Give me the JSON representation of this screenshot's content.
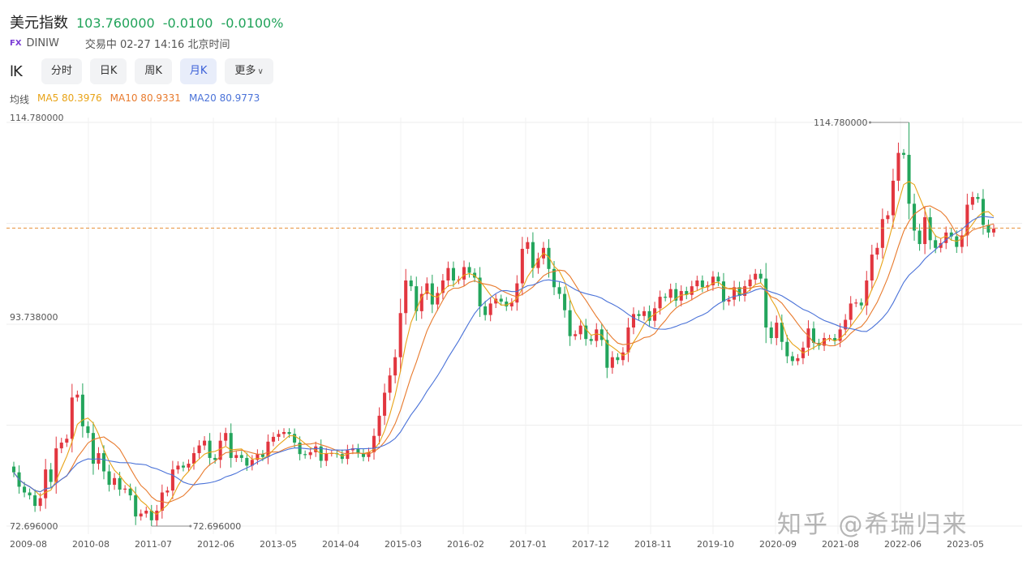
{
  "header": {
    "name": "美元指数",
    "price": "103.760000",
    "change": "-0.0100",
    "change_pct": "-0.0100%",
    "badge": "FX",
    "code": "DINIW",
    "status": "交易中 02-27 14:16 北京时间"
  },
  "toolbar": {
    "logo": "lK",
    "tabs": [
      "分时",
      "日K",
      "周K",
      "月K"
    ],
    "active_tab": "月K",
    "more_label": "更多"
  },
  "ma": {
    "label": "均线",
    "ma5": "MA5 80.3976",
    "ma10": "MA10 80.9331",
    "ma20": "MA20 80.9773"
  },
  "colors": {
    "up": "#e2363f",
    "down": "#23a55c",
    "ma5": "#e8a317",
    "ma10": "#e87a2d",
    "ma20": "#4a72d8",
    "last_price_line": "#e8913a"
  },
  "watermark": "知乎 @希瑞归来",
  "chart_data": {
    "type": "candlestick",
    "interval": "monthly",
    "ylim": [
      72.696,
      114.78
    ],
    "y_tick_labels": [
      "114.780000",
      "93.738000",
      "72.696000"
    ],
    "y_ticks": [
      114.78,
      93.738,
      72.696
    ],
    "x_tick_labels": [
      "2009-08",
      "2010-08",
      "2011-07",
      "2012-06",
      "2013-05",
      "2014-04",
      "2015-03",
      "2016-02",
      "2017-01",
      "2017-12",
      "2018-11",
      "2019-10",
      "2020-09",
      "2021-08",
      "2022-06",
      "2023-05"
    ],
    "max_label": "114.780000",
    "min_label": "72.696000",
    "last_price": 103.76,
    "grid": true,
    "series_keys": [
      "MA5",
      "MA10",
      "MA20"
    ],
    "closes": [
      78.3,
      76.8,
      76.2,
      75.9,
      74.8,
      75.6,
      78.6,
      77.3,
      80.8,
      81.4,
      81.8,
      86.1,
      86.4,
      83.1,
      82.4,
      79.2,
      80.3,
      78.4,
      77.0,
      77.7,
      76.5,
      76.6,
      75.9,
      73.7,
      74.0,
      74.3,
      73.3,
      74.3,
      76.2,
      76.4,
      78.6,
      79.0,
      78.8,
      79.2,
      80.3,
      81.1,
      81.6,
      79.8,
      79.6,
      81.6,
      82.4,
      79.8,
      80.1,
      79.8,
      79.0,
      79.6,
      80.2,
      79.9,
      81.5,
      82.0,
      82.3,
      82.5,
      82.3,
      81.4,
      80.2,
      80.1,
      80.4,
      81.0,
      79.5,
      80.3,
      80.3,
      80.2,
      79.7,
      80.6,
      80.8,
      80.3,
      79.9,
      80.4,
      82.1,
      84.2,
      86.6,
      88.4,
      90.3,
      94.9,
      98.3,
      97.7,
      95.1,
      96.9,
      98.0,
      95.8,
      97.0,
      98.3,
      99.6,
      98.3,
      98.4,
      99.7,
      99.1,
      98.6,
      95.6,
      94.7,
      95.9,
      96.4,
      96.1,
      95.6,
      96.0,
      98.0,
      101.6,
      102.3,
      99.6,
      100.6,
      101.7,
      99.5,
      97.6,
      96.9,
      95.2,
      92.5,
      92.7,
      93.6,
      92.2,
      92.0,
      93.2,
      92.1,
      89.2,
      90.3,
      90.0,
      90.8,
      93.4,
      94.8,
      94.6,
      95.1,
      94.1,
      95.4,
      96.6,
      96.5,
      97.4,
      96.2,
      97.2,
      96.8,
      97.7,
      98.3,
      97.6,
      97.8,
      98.7,
      98.2,
      96.1,
      96.3,
      97.6,
      96.7,
      97.7,
      98.4,
      99.0,
      98.5,
      93.4,
      92.3,
      93.9,
      91.9,
      90.4,
      89.9,
      90.2,
      91.3,
      93.3,
      91.8,
      91.5,
      92.3,
      92.3,
      92.0,
      93.2,
      94.2,
      95.9,
      96.0,
      95.7,
      98.3,
      101.0,
      101.7,
      104.7,
      105.1,
      108.7,
      111.6,
      111.4,
      106.3,
      103.5,
      102.1,
      104.9,
      102.5,
      101.7,
      102.2,
      103.3,
      102.9,
      101.8,
      103.0,
      106.2,
      107.0,
      106.8,
      104.1,
      103.3,
      103.7
    ]
  }
}
